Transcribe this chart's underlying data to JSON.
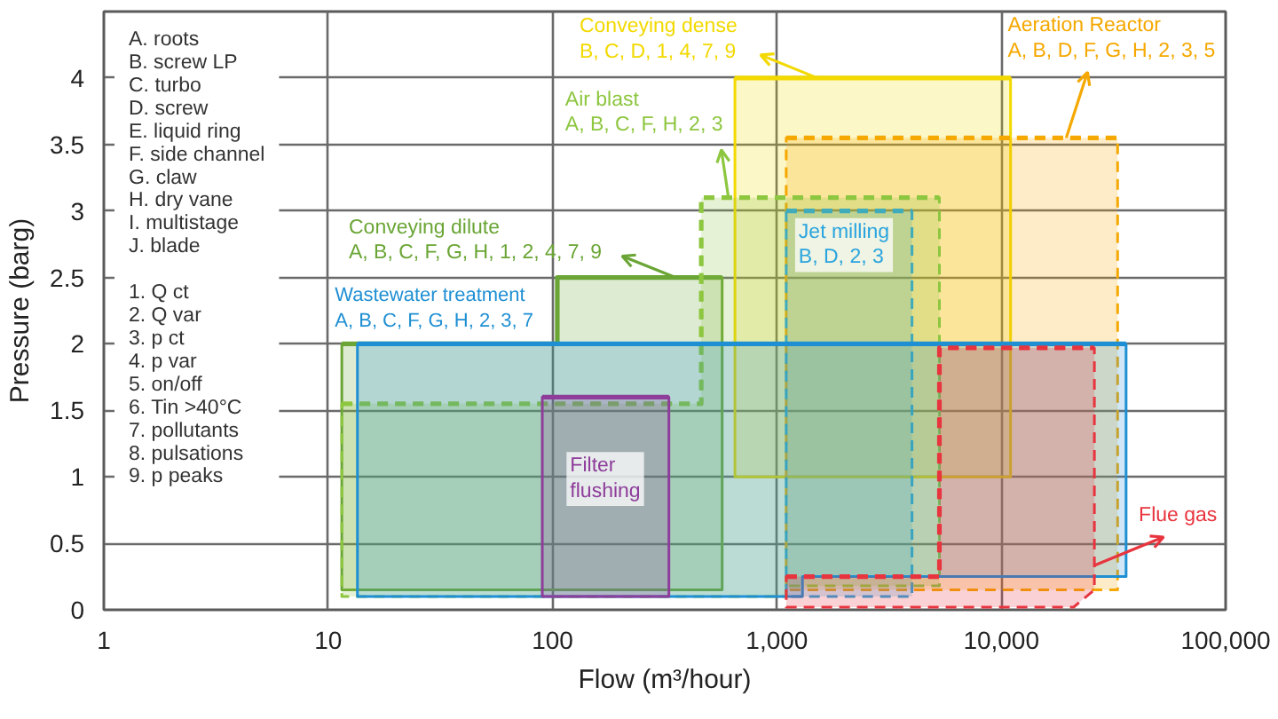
{
  "chart_data": {
    "type": "line",
    "xlabel": "Flow (m³/hour)",
    "ylabel": "Pressure (barg)",
    "log": "x",
    "xlim": [
      1,
      100000
    ],
    "ylim": [
      0,
      4.5
    ],
    "xticks": [
      1,
      10,
      100,
      {
        "value": 1000,
        "label": "1,000"
      },
      {
        "value": 10000,
        "label": "10,000"
      },
      {
        "value": 100000,
        "label": "100,000"
      }
    ],
    "yticks": [
      0,
      0.5,
      1,
      1.5,
      2,
      2.5,
      3,
      3.5,
      4
    ],
    "grid": true,
    "series": [
      {
        "name": "Conveying dense\nB, C, D, 1, 4, 7, 9",
        "color": "#f2d900",
        "line_style": "solid",
        "x": [
          650,
          11000
        ],
        "values": [
          4,
          4
        ],
        "lower": [
          1,
          1
        ],
        "upper": [
          4,
          4
        ]
      },
      {
        "name": "Aeration Reactor\nA, B, D, F, G, H, 2, 3, 5",
        "color": "#f5a800",
        "line_style": "dashed",
        "x": [
          1100,
          33000
        ],
        "values": [
          3.55,
          3.55
        ],
        "lower": [
          0.15,
          0.15
        ],
        "upper": [
          3.55,
          3.55
        ]
      },
      {
        "name": "Jet milling\nB, D, 2, 3",
        "color": "#2aa4de",
        "line_style": "dashed",
        "x": [
          1100,
          4000
        ],
        "values": [
          3,
          3
        ],
        "lower": [
          0.1,
          0.1
        ],
        "upper": [
          3,
          3
        ]
      },
      {
        "name": "Conveying dilute\nA, B, C, F, G, H, 1, 2, 4, 7, 9",
        "color": "#6aa535",
        "line_style": "solid",
        "x": [
          11.5,
          105,
          105,
          570
        ],
        "values": [
          2,
          2,
          2.5,
          2.5
        ],
        "lower": [
          0.15,
          0.15,
          0.15,
          0.15
        ],
        "upper": [
          2,
          2,
          2.5,
          2.5
        ]
      },
      {
        "name": "Air blast\nA, B, C, F, H, 2, 3",
        "color": "#8dc63f",
        "line_style": "dashed",
        "x": [
          11.5,
          460,
          460,
          1100,
          1100,
          5300
        ],
        "values": [
          1.55,
          1.55,
          3.1,
          3.1,
          3.1,
          3.1
        ],
        "lower": [
          0.1,
          0.1,
          0.1,
          0.1,
          0.18,
          0.18
        ],
        "upper": [
          1.55,
          1.55,
          3.1,
          3.1,
          3.1,
          3.1
        ]
      },
      {
        "name": "Wastewater\ntreatment\nA, B, C, F, G,\nH, 2, 3, 7",
        "color": "#1f8fd3",
        "line_style": "solid",
        "x": [
          13.5,
          1300,
          1300,
          36000
        ],
        "values": [
          2,
          2,
          2,
          2
        ],
        "lower": [
          0.1,
          0.1,
          0.25,
          0.25
        ],
        "upper": [
          2,
          2,
          2,
          2
        ]
      },
      {
        "name": "Filter flushing",
        "color": "#8e3d9a",
        "line_style": "solid",
        "x": [
          90,
          330
        ],
        "values": [
          1.6,
          1.6
        ],
        "lower": [
          0.1,
          0.1
        ],
        "upper": [
          1.6,
          1.6
        ]
      },
      {
        "name": "Flue gas",
        "color": "#e8343e",
        "line_style": "dashed",
        "x": [
          1100,
          5300,
          5300,
          21000,
          26000
        ],
        "values": [
          0.25,
          0.25,
          1.97,
          1.97,
          1.97
        ],
        "lower": [
          0.02,
          0.02,
          0.02,
          0.02,
          0.15
        ],
        "upper": [
          0.25,
          0.25,
          1.97,
          1.97,
          1.97
        ]
      }
    ],
    "annotations": [
      "A. roots\nB. screw LP\nC. turbo\nD. screw\nE. liquid ring\nF. side channel\nG. claw\nH. dry vane\nI. multistage\nJ. blade",
      "1. Q ct\n2. Q var\n3. p ct\n4. p var\n5. on/off\n6. Tin >40°C\n7. pollutants\n8. pulsations\n9. p peaks"
    ]
  }
}
